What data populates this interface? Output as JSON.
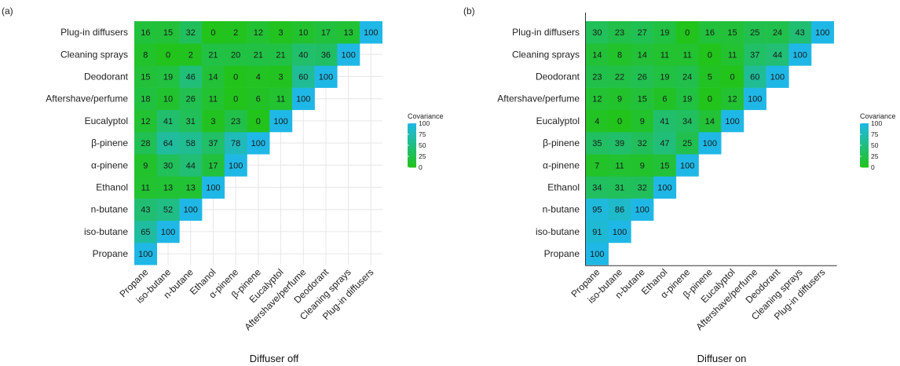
{
  "colors": {
    "low": "#22c31b",
    "high": "#1fb8e6",
    "grid": "#e6e6e6",
    "axis": "#333333",
    "text": "#222222"
  },
  "legend": {
    "title": "Covariance",
    "ticks": [
      100,
      75,
      50,
      25,
      0
    ]
  },
  "chart_data": [
    {
      "type": "heatmap",
      "panel_label": "(a)",
      "xlabel": "Diffuser off",
      "ylabel": "",
      "categories": [
        "Propane",
        "iso-butane",
        "n-butane",
        "Ethanol",
        "α-pinene",
        "β-pinene",
        "Eucalyptol",
        "Aftershave/perfume",
        "Deodorant",
        "Cleaning sprays",
        "Plug-in diffusers"
      ],
      "scale": [
        0,
        100
      ],
      "grid": true,
      "legend": "right",
      "rows": [
        [
          100
        ],
        [
          65,
          100
        ],
        [
          43,
          52,
          100
        ],
        [
          11,
          13,
          13,
          100
        ],
        [
          9,
          30,
          44,
          17,
          100
        ],
        [
          28,
          64,
          58,
          37,
          78,
          100
        ],
        [
          12,
          41,
          31,
          3,
          23,
          0,
          100
        ],
        [
          18,
          10,
          26,
          11,
          0,
          6,
          11,
          100
        ],
        [
          15,
          19,
          46,
          14,
          0,
          4,
          3,
          60,
          100
        ],
        [
          8,
          0,
          2,
          21,
          20,
          21,
          21,
          40,
          36,
          100
        ],
        [
          16,
          15,
          32,
          0,
          2,
          12,
          3,
          10,
          17,
          13,
          100
        ]
      ]
    },
    {
      "type": "heatmap",
      "panel_label": "(b)",
      "xlabel": "Diffuser on",
      "ylabel": "",
      "categories": [
        "Propane",
        "iso-butane",
        "n-butane",
        "Ethanol",
        "α-pinene",
        "β-pinene",
        "Eucalyptol",
        "Aftershave/perfume",
        "Deodorant",
        "Cleaning sprays",
        "Plug-in diffusers"
      ],
      "scale": [
        0,
        100
      ],
      "grid": false,
      "legend": "right",
      "rows": [
        [
          100
        ],
        [
          91,
          100
        ],
        [
          95,
          86,
          100
        ],
        [
          34,
          31,
          32,
          100
        ],
        [
          7,
          11,
          9,
          15,
          100
        ],
        [
          35,
          39,
          32,
          47,
          25,
          100
        ],
        [
          4,
          0,
          9,
          41,
          34,
          14,
          100
        ],
        [
          12,
          9,
          15,
          6,
          19,
          0,
          12,
          100
        ],
        [
          23,
          22,
          26,
          19,
          24,
          5,
          0,
          60,
          100
        ],
        [
          14,
          8,
          14,
          11,
          11,
          0,
          11,
          37,
          44,
          100
        ],
        [
          30,
          23,
          27,
          19,
          0,
          16,
          15,
          25,
          24,
          43,
          100
        ]
      ]
    }
  ]
}
